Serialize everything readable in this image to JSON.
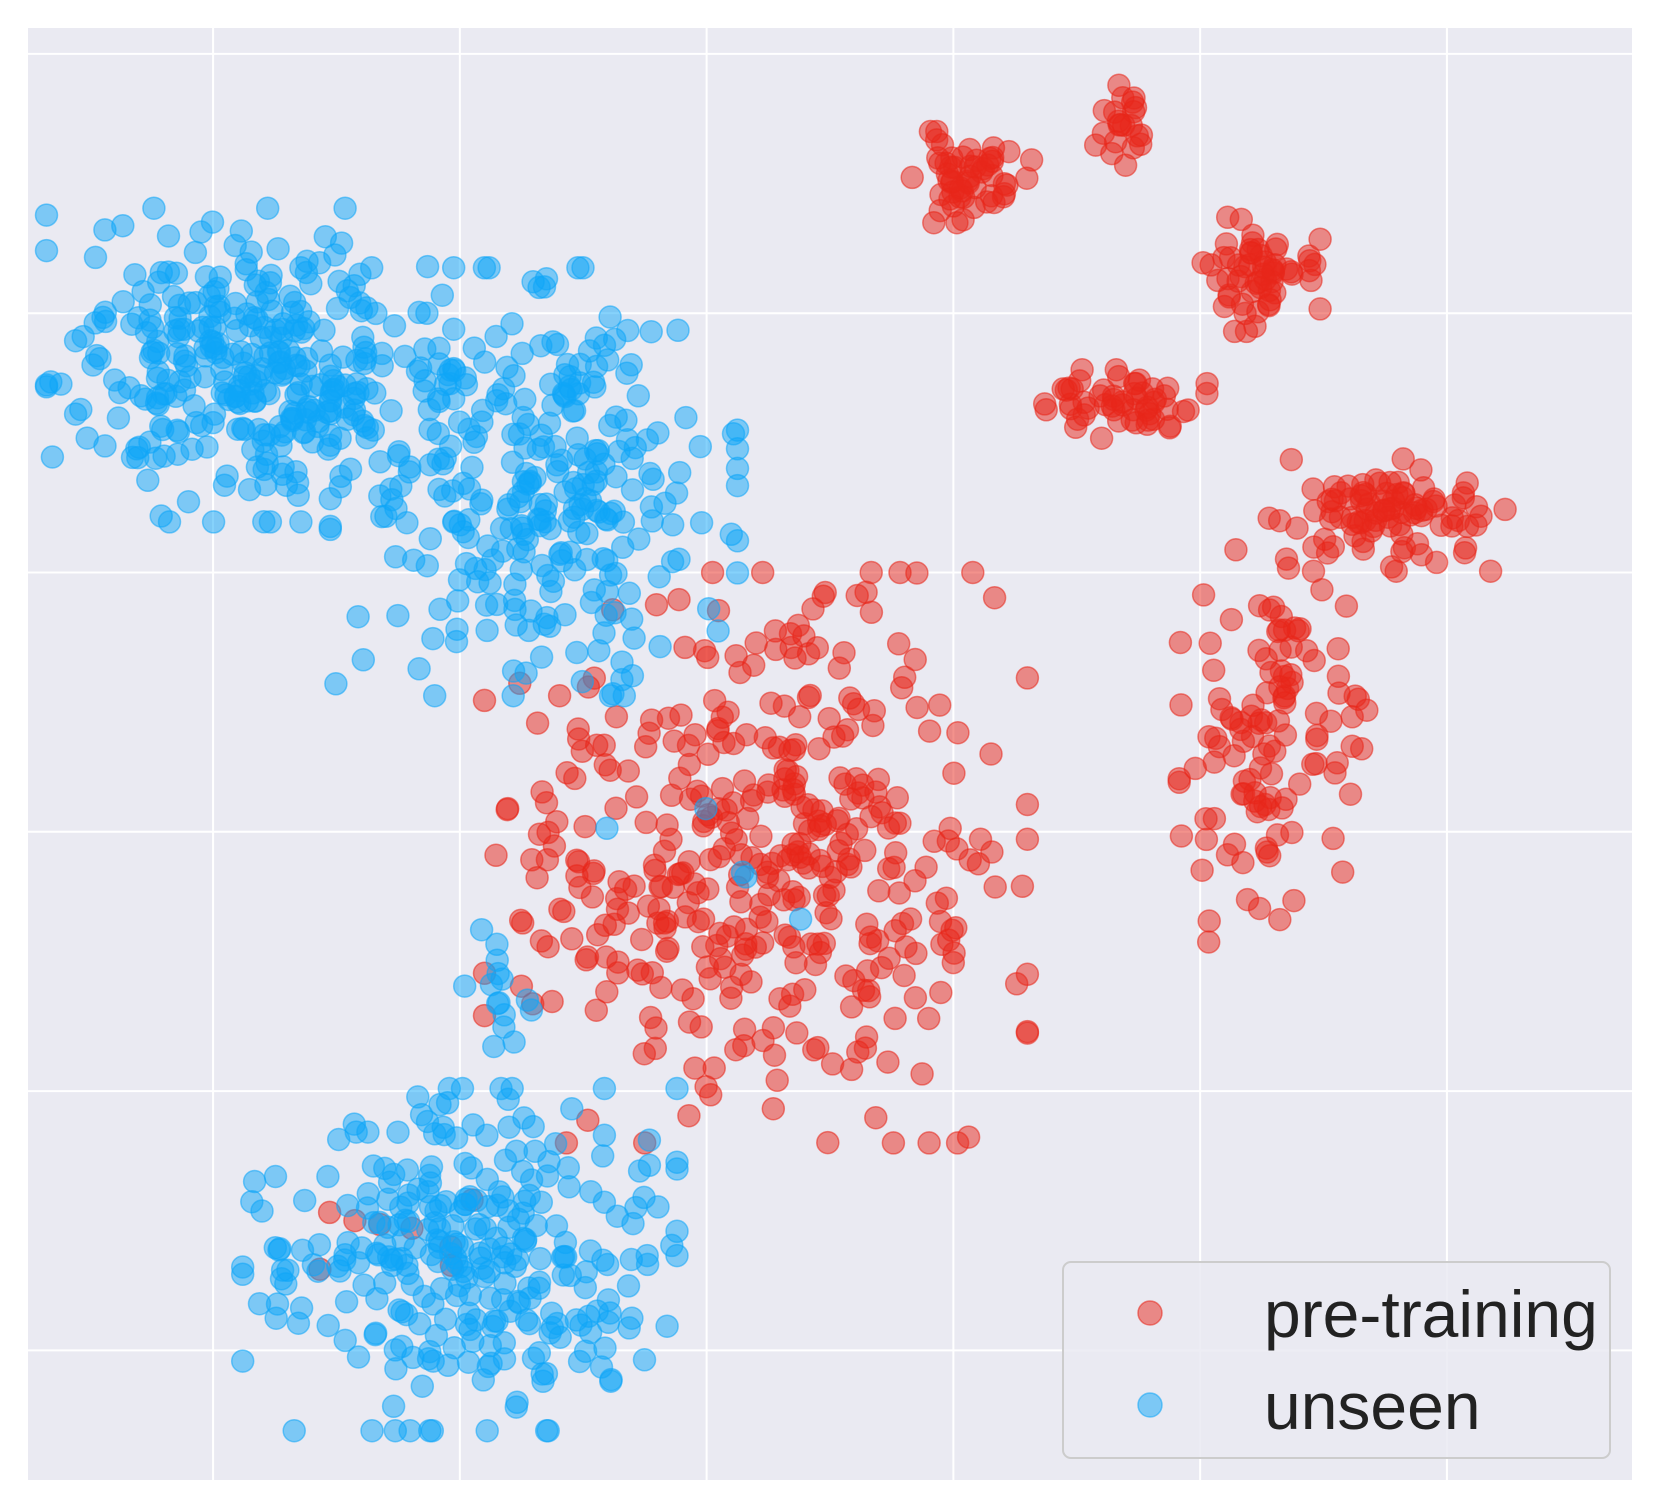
{
  "chart_data": {
    "type": "scatter",
    "title": "",
    "xlabel": "",
    "ylabel": "",
    "xlim": [
      -75,
      55
    ],
    "ylim": [
      -60,
      52
    ],
    "grid": true,
    "xticks": [
      -60,
      -40,
      -20,
      0,
      20,
      40
    ],
    "yticks": [
      -50,
      -30,
      -10,
      10,
      30,
      50
    ],
    "legend_position": "bottom-right",
    "background_color": "#EAEAF2",
    "grid_color": "#FFFFFF",
    "series": [
      {
        "name": "pre-training",
        "color": "#E8261A",
        "clusters": [
          {
            "count": 55,
            "center": [
              1.5,
              40.5
            ],
            "spread": [
              2.2,
              1.6
            ],
            "seed": 11
          },
          {
            "count": 22,
            "center": [
              13.5,
              44.5
            ],
            "spread": [
              0.9,
              1.4
            ],
            "seed": 12
          },
          {
            "count": 60,
            "center": [
              24.0,
              33.0
            ],
            "spread": [
              2.6,
              2.0
            ],
            "seed": 13
          },
          {
            "count": 55,
            "center": [
              14.0,
              23.0
            ],
            "spread": [
              3.0,
              1.2
            ],
            "seed": 14
          },
          {
            "count": 95,
            "center": [
              35.5,
              14.5
            ],
            "spread": [
              4.5,
              2.0
            ],
            "seed": 15
          },
          {
            "count": 120,
            "center": [
              26.0,
              -2.0
            ],
            "spread": [
              3.5,
              7.5
            ],
            "seed": 16
          },
          {
            "count": 420,
            "center": [
              -16.0,
              -12.0
            ],
            "spread": [
              10.0,
              10.0
            ],
            "seed": 17
          },
          {
            "count": 8,
            "center": [
              -40.0,
              -41.0
            ],
            "spread": [
              6.0,
              2.0
            ],
            "seed": 18
          }
        ]
      },
      {
        "name": "unseen",
        "color": "#0EA5F7",
        "clusters": [
          {
            "count": 330,
            "center": [
              -57.0,
              26.0
            ],
            "spread": [
              7.5,
              5.5
            ],
            "seed": 21
          },
          {
            "count": 300,
            "center": [
              -34.0,
              17.0
            ],
            "spread": [
              7.5,
              7.5
            ],
            "seed": 22
          },
          {
            "count": 15,
            "center": [
              -37.5,
              -22.0
            ],
            "spread": [
              1.5,
              3.0
            ],
            "seed": 23
          },
          {
            "count": 300,
            "center": [
              -40.0,
              -43.0
            ],
            "spread": [
              8.0,
              6.0
            ],
            "seed": 24
          },
          {
            "count": 5,
            "center": [
              -20.0,
              -13.0
            ],
            "spread": [
              6.0,
              3.0
            ],
            "seed": 25
          }
        ]
      }
    ]
  }
}
